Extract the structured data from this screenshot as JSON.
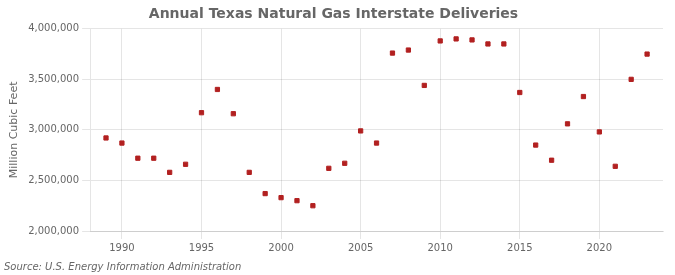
{
  "chart_data": {
    "type": "scatter",
    "title": "Annual Texas Natural Gas Interstate Deliveries",
    "ylabel": "Million Cubic Feet",
    "annotation": "Source: U.S. Energy Information Administration",
    "x": [
      1989,
      1990,
      1991,
      1992,
      1993,
      1994,
      1995,
      1996,
      1997,
      1998,
      1999,
      2000,
      2001,
      2002,
      2003,
      2004,
      2005,
      2006,
      2007,
      2008,
      2009,
      2010,
      2011,
      2012,
      2013,
      2014,
      2015,
      2016,
      2017,
      2018,
      2019,
      2020,
      2021,
      2022,
      2023
    ],
    "values": [
      2920000,
      2870000,
      2720000,
      2720000,
      2580000,
      2660000,
      3170000,
      3400000,
      3160000,
      2580000,
      2370000,
      2330000,
      2300000,
      2250000,
      2620000,
      2670000,
      2990000,
      2870000,
      3760000,
      3790000,
      3440000,
      3880000,
      3900000,
      3890000,
      3850000,
      3850000,
      3370000,
      2850000,
      2700000,
      3060000,
      3330000,
      2980000,
      2640000,
      3500000,
      3750000
    ],
    "color": "#b22020",
    "marker": "square",
    "xlim": [
      1988,
      2024
    ],
    "xticks": [
      1990,
      1995,
      2000,
      2005,
      2010,
      2015,
      2020
    ],
    "ylim": [
      2000000,
      4000000
    ],
    "yticks": [
      {
        "value": 2000000,
        "label": "2,000,000"
      },
      {
        "value": 2500000,
        "label": "2,500,000"
      },
      {
        "value": 3000000,
        "label": "3,000,000"
      },
      {
        "value": 3500000,
        "label": "3,500,000"
      },
      {
        "value": 4000000,
        "label": "4,000,000"
      }
    ],
    "grid": true
  }
}
